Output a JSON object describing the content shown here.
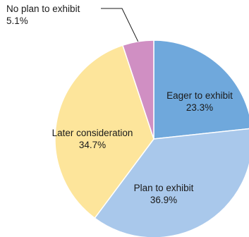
{
  "chart_data": {
    "type": "pie",
    "title": "",
    "start_angle_deg": 0,
    "direction": "clockwise",
    "slices": [
      {
        "label": "Eager to exhibit",
        "value": 23.3,
        "value_label": "23.3%",
        "color": "#6fa8dc"
      },
      {
        "label": "Plan to exhibit",
        "value": 36.9,
        "value_label": "36.9%",
        "color": "#a9c8eb"
      },
      {
        "label": "Later consideration",
        "value": 34.7,
        "value_label": "34.7%",
        "color": "#fde59b"
      },
      {
        "label": "No plan to exhibit",
        "value": 5.1,
        "value_label": "5.1%",
        "color": "#d08fc3"
      }
    ]
  }
}
